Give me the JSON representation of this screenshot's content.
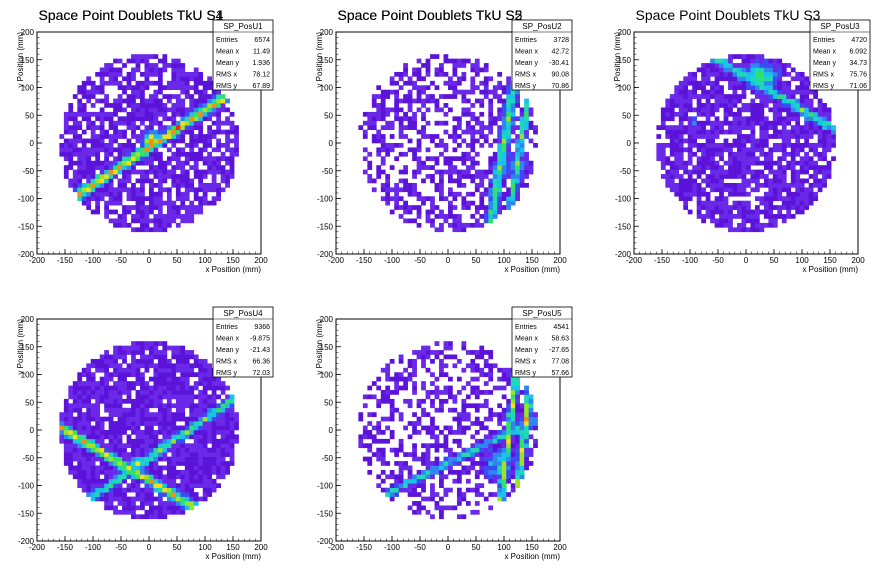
{
  "colors": {
    "background": "#ffffff",
    "frame": "#000000",
    "palette": [
      "#5b13d9",
      "#6a28e8",
      "#3a4cf2",
      "#2f86f0",
      "#19c3e8",
      "#1ed9b4",
      "#33e06a",
      "#9be526",
      "#f2e01a",
      "#ff8a10",
      "#ff1e1e"
    ]
  },
  "chart_data": [
    {
      "type": "heatmap",
      "title": "Space Point Doublets TkU S1",
      "histogram_name": "SP_PosU1",
      "xlabel": "x Position (mm)",
      "ylabel": "y Position (mm)",
      "xlim": [
        -200,
        200
      ],
      "ylim": [
        -200,
        200
      ],
      "ticks": [
        -200,
        -150,
        -100,
        -50,
        0,
        50,
        100,
        150,
        200
      ],
      "stats": [
        {
          "label": "Entries",
          "value": "6574"
        },
        {
          "label": "Mean x",
          "value": "11.49"
        },
        {
          "label": "Mean y",
          "value": "1.936"
        },
        {
          "label": "RMS x",
          "value": "78.12"
        },
        {
          "label": "RMS y",
          "value": "67.89"
        }
      ],
      "pattern": {
        "radius": 160,
        "fill": 0.75,
        "bands": [
          {
            "slope": 0.67,
            "intercept": -8,
            "width": 14,
            "strength": 0.85
          }
        ],
        "hotspots": [
          {
            "x": 5,
            "y": 5,
            "r": 22,
            "strength": 1.0
          }
        ],
        "seed": 11
      }
    },
    {
      "type": "heatmap",
      "title": "Space Point Doublets TkU S2",
      "histogram_name": "SP_PosU2",
      "xlabel": "x Position (mm)",
      "ylabel": "y Position (mm)",
      "xlim": [
        -200,
        200
      ],
      "ylim": [
        -200,
        200
      ],
      "ticks": [
        -200,
        -150,
        -100,
        -50,
        0,
        50,
        100,
        150,
        200
      ],
      "stats": [
        {
          "label": "Entries",
          "value": "3728"
        },
        {
          "label": "Mean x",
          "value": "42.72"
        },
        {
          "label": "Mean y",
          "value": "-30.41"
        },
        {
          "label": "RMS x",
          "value": "90.08"
        },
        {
          "label": "RMS y",
          "value": "70.86"
        }
      ],
      "pattern": {
        "radius": 160,
        "fill": 0.5,
        "bands": [
          {
            "slope": 6,
            "intercept": -600,
            "width": 14,
            "strength": 0.6
          },
          {
            "slope": 6,
            "intercept": -780,
            "width": 10,
            "strength": 0.6
          }
        ],
        "hotspots": [
          {
            "x": 120,
            "y": -40,
            "r": 30,
            "strength": 0.55
          }
        ],
        "seed": 23
      }
    },
    {
      "type": "heatmap",
      "title": "Space Point Doublets TkU S3",
      "histogram_name": "SP_PosU3",
      "xlabel": "x Position (mm)",
      "ylabel": "y Position (mm)",
      "xlim": [
        -200,
        200
      ],
      "ylim": [
        -200,
        200
      ],
      "ticks": [
        -200,
        -150,
        -100,
        -50,
        0,
        50,
        100,
        150,
        200
      ],
      "stats": [
        {
          "label": "Entries",
          "value": "4720"
        },
        {
          "label": "Mean x",
          "value": "6.092"
        },
        {
          "label": "Mean y",
          "value": "34.73"
        },
        {
          "label": "RMS x",
          "value": "75.76"
        },
        {
          "label": "RMS y",
          "value": "71.06"
        }
      ],
      "pattern": {
        "radius": 160,
        "fill": 0.82,
        "bands": [
          {
            "slope": -0.6,
            "intercept": 120,
            "width": 14,
            "strength": 0.55
          }
        ],
        "hotspots": [
          {
            "x": 30,
            "y": 120,
            "r": 40,
            "strength": 0.6
          },
          {
            "x": -95,
            "y": 40,
            "r": 10,
            "strength": 0.6
          }
        ],
        "seed": 37
      }
    },
    {
      "type": "heatmap",
      "title": "Space Point Doublets TkU S4",
      "histogram_name": "SP_PosU4",
      "xlabel": "x Position (mm)",
      "ylabel": "y Position (mm)",
      "xlim": [
        -200,
        200
      ],
      "ylim": [
        -200,
        200
      ],
      "ticks": [
        -200,
        -150,
        -100,
        -50,
        0,
        50,
        100,
        150,
        200
      ],
      "stats": [
        {
          "label": "Entries",
          "value": "9366"
        },
        {
          "label": "Mean x",
          "value": "-9.875"
        },
        {
          "label": "Mean y",
          "value": "-21.43"
        },
        {
          "label": "RMS x",
          "value": "66.36"
        },
        {
          "label": "RMS y",
          "value": "72.03"
        }
      ],
      "pattern": {
        "radius": 160,
        "fill": 0.88,
        "bands": [
          {
            "slope": -0.6,
            "intercept": -90,
            "width": 14,
            "strength": 0.8
          },
          {
            "slope": 0.7,
            "intercept": -50,
            "width": 12,
            "strength": 0.6
          }
        ],
        "hotspots": [
          {
            "x": -20,
            "y": -60,
            "r": 20,
            "strength": 0.7
          }
        ],
        "seed": 41
      }
    },
    {
      "type": "heatmap",
      "title": "Space Point Doublets TkU S5",
      "histogram_name": "SP_PosU5",
      "xlabel": "x Position (mm)",
      "ylabel": "y Position (mm)",
      "xlim": [
        -200,
        200
      ],
      "ylim": [
        -200,
        200
      ],
      "ticks": [
        -200,
        -150,
        -100,
        -50,
        0,
        50,
        100,
        150,
        200
      ],
      "stats": [
        {
          "label": "Entries",
          "value": "4541"
        },
        {
          "label": "Mean x",
          "value": "58.63"
        },
        {
          "label": "Mean y",
          "value": "-27.65"
        },
        {
          "label": "RMS x",
          "value": "77.08"
        },
        {
          "label": "RMS y",
          "value": "57.66"
        }
      ],
      "pattern": {
        "radius": 160,
        "fill": 0.45,
        "bands": [
          {
            "slope": 0.5,
            "intercept": -60,
            "width": 12,
            "strength": 0.5
          },
          {
            "slope": 8,
            "intercept": -880,
            "width": 10,
            "strength": 0.75
          },
          {
            "slope": 8,
            "intercept": -1100,
            "width": 10,
            "strength": 0.75
          }
        ],
        "hotspots": [
          {
            "x": 90,
            "y": -60,
            "r": 40,
            "strength": 0.45
          }
        ],
        "seed": 53
      }
    }
  ]
}
